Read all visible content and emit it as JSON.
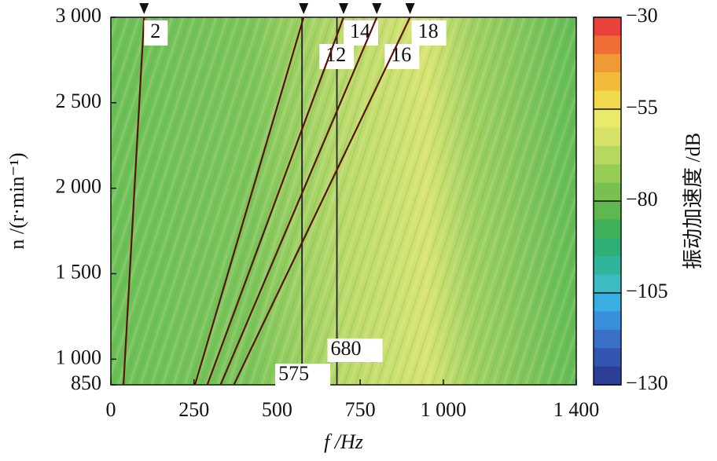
{
  "chart_data": {
    "type": "line",
    "xlabel": "f /Hz",
    "ylabel": "n /(r·min⁻¹)",
    "xlim": [
      0,
      1400
    ],
    "xticks": [
      0,
      250,
      500,
      750,
      {
        "value": 1000,
        "label": "1 000"
      },
      {
        "value": 1400,
        "label": "1 400"
      }
    ],
    "ylim": [
      850,
      3000
    ],
    "yticks": [
      {
        "value": 850,
        "label": "850"
      },
      {
        "value": 1000,
        "label": "1 000"
      },
      {
        "value": 1500,
        "label": "1 500"
      },
      {
        "value": 2000,
        "label": "2 000"
      },
      {
        "value": 2500,
        "label": "2 500"
      },
      {
        "value": 3000,
        "label": "3 000"
      }
    ],
    "series": [
      {
        "name": "2",
        "color": "#5a1208",
        "x": [
          38,
          100
        ],
        "y": [
          850,
          3000
        ]
      },
      {
        "name": "12",
        "color": "#5a1208",
        "x": [
          253,
          580
        ],
        "y": [
          850,
          3000
        ]
      },
      {
        "name": "14",
        "color": "#5a1208",
        "x": [
          290,
          700
        ],
        "y": [
          850,
          3000
        ]
      },
      {
        "name": "16",
        "color": "#5a1208",
        "x": [
          330,
          800
        ],
        "y": [
          850,
          3000
        ]
      },
      {
        "name": "18",
        "color": "#5a1208",
        "x": [
          370,
          900
        ],
        "y": [
          850,
          3000
        ]
      }
    ],
    "vlines": [
      575,
      680
    ],
    "colorbar": {
      "label": "振动加速度 /dB",
      "lim": [
        -130,
        -30
      ],
      "ticks": [
        {
          "value": -30,
          "label": "−30"
        },
        {
          "value": -55,
          "label": "−55"
        },
        {
          "value": -80,
          "label": "−80"
        },
        {
          "value": -105,
          "label": "−105"
        },
        {
          "value": -130,
          "label": "−130"
        }
      ],
      "colors": [
        "#e8423a",
        "#ef6e34",
        "#f09a36",
        "#f2bb3b",
        "#f0d94a",
        "#eaea6a",
        "#d6e26a",
        "#b7d860",
        "#98cd55",
        "#78c150",
        "#5eb84f",
        "#3fb05a",
        "#2fae78",
        "#30b49a",
        "#3cbcc0",
        "#3aaee0",
        "#3a8fdc",
        "#3a70c8",
        "#3456b0",
        "#2c3f94"
      ]
    }
  }
}
